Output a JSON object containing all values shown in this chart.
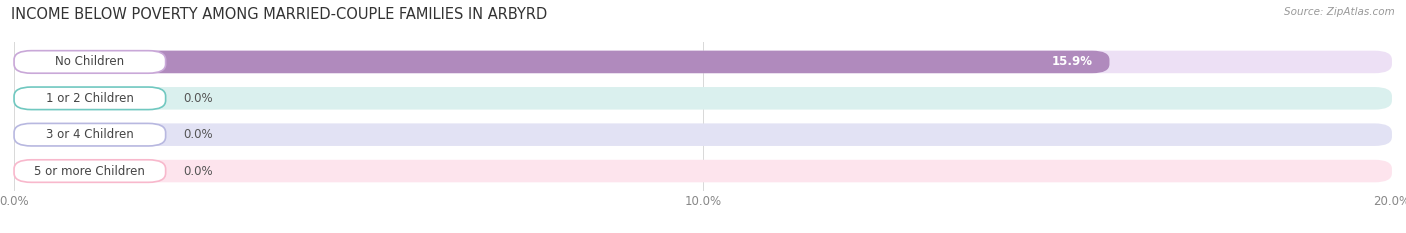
{
  "title": "INCOME BELOW POVERTY AMONG MARRIED-COUPLE FAMILIES IN ARBYRD",
  "source": "Source: ZipAtlas.com",
  "categories": [
    "No Children",
    "1 or 2 Children",
    "3 or 4 Children",
    "5 or more Children"
  ],
  "values": [
    15.9,
    0.0,
    0.0,
    0.0
  ],
  "bar_colors": [
    "#b08abd",
    "#60bdb5",
    "#a9aad6",
    "#f2a8be"
  ],
  "bar_bg_colors": [
    "#ede0f5",
    "#daf0ee",
    "#e2e2f4",
    "#fde4ed"
  ],
  "value_labels": [
    "15.9%",
    "0.0%",
    "0.0%",
    "0.0%"
  ],
  "label_colors": [
    "#c9a8d8",
    "#70c8c0",
    "#b8b8e0",
    "#f8b8cc"
  ],
  "xlim": [
    0,
    20.0
  ],
  "xticks": [
    0.0,
    10.0,
    20.0
  ],
  "xticklabels": [
    "0.0%",
    "10.0%",
    "20.0%"
  ],
  "title_fontsize": 10.5,
  "tick_fontsize": 8.5,
  "bar_label_fontsize": 8.5,
  "value_fontsize": 8.5,
  "background_color": "#ffffff"
}
